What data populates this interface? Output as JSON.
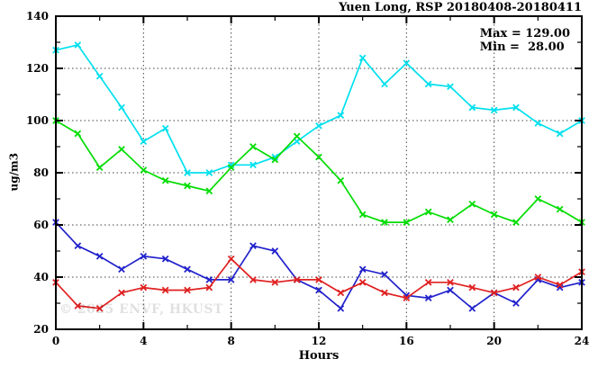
{
  "header": {
    "title": "Yuen Long, RSP 20180408-20180411",
    "stats": {
      "max_label": "Max = 129.00",
      "min_label": "Min =  28.00"
    }
  },
  "watermark": "© 2025 ENVF, HKUST",
  "chart_data": {
    "type": "line",
    "title": "Yuen Long, RSP 20180408-20180411",
    "xlabel": "Hours",
    "ylabel": "ug/m3",
    "x": [
      0,
      1,
      2,
      3,
      4,
      5,
      6,
      7,
      8,
      9,
      10,
      11,
      12,
      13,
      14,
      15,
      16,
      17,
      18,
      19,
      20,
      21,
      22,
      23,
      24
    ],
    "xlim": [
      0,
      24
    ],
    "ylim": [
      20,
      140
    ],
    "x_major_ticks": [
      0,
      4,
      8,
      12,
      16,
      20,
      24
    ],
    "x_minor_ticks": [
      2,
      6,
      10,
      14,
      18,
      22
    ],
    "y_major_ticks": [
      20,
      40,
      60,
      80,
      100,
      120,
      140
    ],
    "y_minor_ticks": [
      30,
      50,
      70,
      90,
      110,
      130
    ],
    "grid_x": [
      4,
      8,
      12,
      16,
      20
    ],
    "grid_y": [
      40,
      60,
      80,
      100,
      120
    ],
    "grid_style": "dotted",
    "legend": "none",
    "marker": "x-cross",
    "stats": {
      "max": 129.0,
      "min": 28.0
    },
    "series": [
      {
        "name": "series-cyan",
        "color": "#00E0EE",
        "values": [
          127,
          129,
          117,
          105,
          92,
          97,
          80,
          80,
          83,
          83,
          86,
          92,
          98,
          102,
          124,
          114,
          122,
          114,
          113,
          105,
          104,
          105,
          99,
          95,
          100
        ]
      },
      {
        "name": "series-green",
        "color": "#00DD00",
        "values": [
          100,
          95,
          82,
          89,
          81,
          77,
          75,
          73,
          82,
          90,
          85,
          94,
          86,
          77,
          64,
          61,
          61,
          65,
          62,
          68,
          64,
          61,
          70,
          66,
          61
        ]
      },
      {
        "name": "series-blue",
        "color": "#2222CC",
        "values": [
          61,
          52,
          48,
          43,
          48,
          47,
          43,
          39,
          39,
          52,
          50,
          39,
          35,
          28,
          43,
          41,
          33,
          32,
          35,
          28,
          34,
          30,
          39,
          36,
          38
        ]
      },
      {
        "name": "series-red",
        "color": "#E02020",
        "values": [
          38,
          29,
          28,
          34,
          36,
          35,
          35,
          36,
          47,
          39,
          38,
          39,
          39,
          34,
          38,
          34,
          32,
          38,
          38,
          36,
          34,
          36,
          40,
          37,
          42
        ]
      }
    ],
    "colors": {
      "frame": "#000000",
      "grid": "#444444",
      "background": "#FFFFFF"
    }
  }
}
